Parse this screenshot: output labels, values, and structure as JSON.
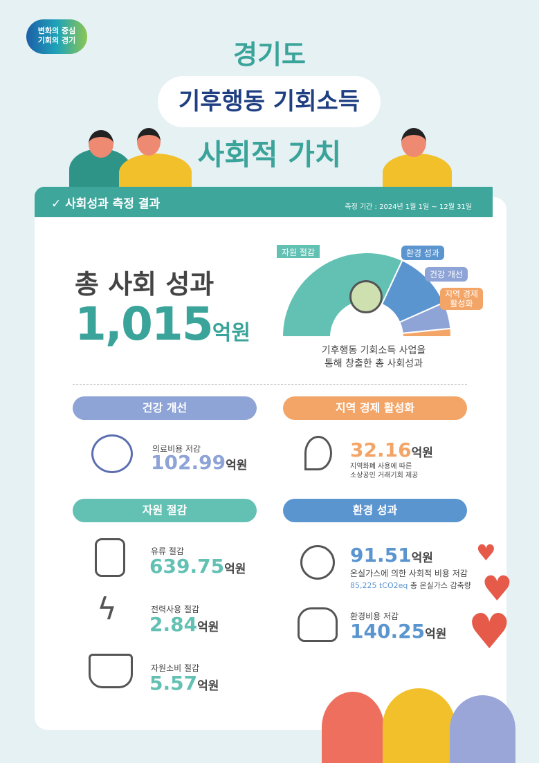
{
  "logo": {
    "line1": "변화의 중심",
    "line2": "기회의 경기"
  },
  "header": {
    "title1": "경기도",
    "title2": "기후행동 기회소득",
    "title3": "사회적 가치"
  },
  "band": {
    "title": "사회성과 측정 결과",
    "period": "측정 기간 : 2024년 1월 1일 ~ 12월 31일"
  },
  "total": {
    "label": "총 사회 성과",
    "value": "1,015",
    "unit": "억원"
  },
  "chart_data": {
    "type": "pie",
    "style": "semi-donut",
    "categories": [
      "자원 절감",
      "환경 성과",
      "건강 개선",
      "지역 경제 활성화"
    ],
    "values": [
      648.16,
      231.76,
      102.99,
      32.16
    ],
    "colors": [
      "#62c1b3",
      "#5b95d0",
      "#8ea3d6",
      "#f3a567"
    ],
    "tag_labels": [
      "자원 절감",
      "환경 성과",
      "건강 개선",
      "지역 경제\n활성화"
    ],
    "caption_line1": "기후행동 기회소득 사업을",
    "caption_line2": "통해 창출한 총 사회성과"
  },
  "sections": {
    "health": {
      "title": "건강 개선",
      "color": "#8ea3d6",
      "label": "의료비용 저감",
      "value": "102.99",
      "unit": "억원"
    },
    "regional": {
      "title": "지역 경제 활성화",
      "color": "#f3a567",
      "value": "32.16",
      "unit": "억원",
      "desc1": "지역화폐 사용에 따른",
      "desc2": "소상공인 거래기회 제공"
    },
    "resource": {
      "title": "자원 절감",
      "color": "#62c1b3",
      "items": [
        {
          "label": "유류 절감",
          "value": "639.75",
          "unit": "억원"
        },
        {
          "label": "전력사용 절감",
          "value": "2.84",
          "unit": "억원"
        },
        {
          "label": "자원소비 절감",
          "value": "5.57",
          "unit": "억원"
        }
      ]
    },
    "environment": {
      "title": "환경 성과",
      "color": "#5b95d0",
      "items": [
        {
          "value": "91.51",
          "unit": "억원",
          "desc": "온실가스에 의한 사회적 비용 저감",
          "co2": "85,225 tCO2eq",
          "co2_desc": "총 온실가스 감축량"
        },
        {
          "label": "환경비용 저감",
          "value": "140.25",
          "unit": "억원"
        }
      ]
    }
  },
  "icons": [
    "check-circle-icon",
    "globe-plant-icon",
    "medical-cost-icon",
    "location-money-icon",
    "oil-barrel-icon",
    "electricity-icon",
    "hand-plant-icon",
    "earth-cloud-icon",
    "hands-earth-icon",
    "heart-icon",
    "smiley-heart-icon"
  ]
}
